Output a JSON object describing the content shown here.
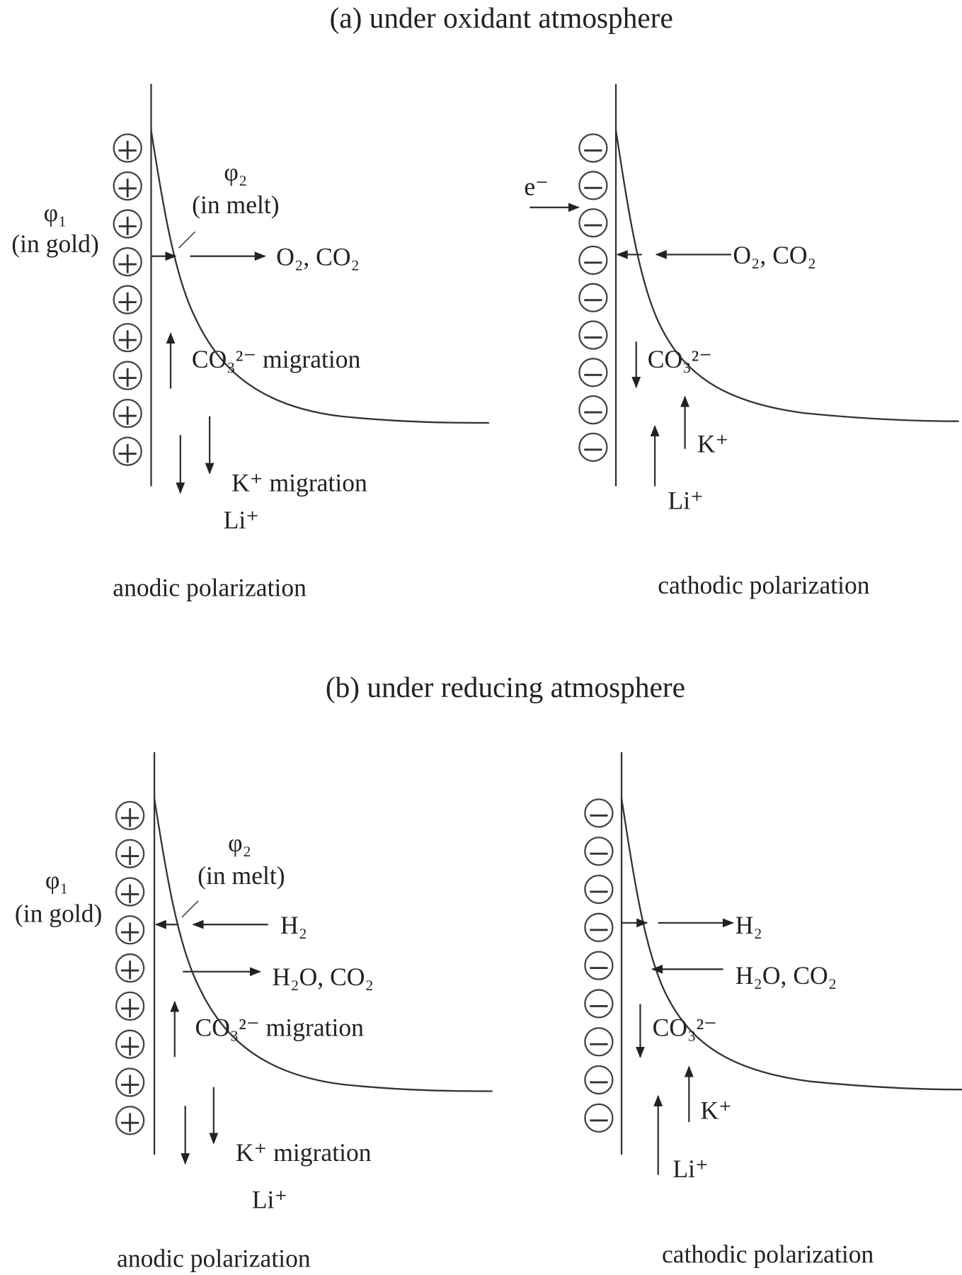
{
  "panel_a": {
    "title": "(a) under oxidant atmosphere",
    "left": {
      "charge_sign": "+",
      "phi1": "φ₁",
      "phi1_note": "(in gold)",
      "phi2": "φ₂",
      "phi2_note": "(in melt)",
      "gas": "O₂, CO₂",
      "anion": "CO₃²⁻ migration",
      "k": "K⁺ migration",
      "li": "Li⁺",
      "caption": "anodic polarization"
    },
    "right": {
      "charge_sign": "−",
      "electron": "e⁻",
      "gas": "O₂, CO₂",
      "anion": "CO₃²⁻",
      "k": "K⁺",
      "li": "Li⁺",
      "caption": "cathodic polarization"
    }
  },
  "panel_b": {
    "title": "(b) under reducing atmosphere",
    "left": {
      "charge_sign": "+",
      "phi1": "φ₁",
      "phi1_note": "(in gold)",
      "phi2": "φ₂",
      "phi2_note": "(in melt)",
      "gas_in": "H₂",
      "gas_out": "H₂O, CO₂",
      "anion": "CO₃²⁻ migration",
      "k": "K⁺ migration",
      "li": "Li⁺",
      "caption": "anodic polarization"
    },
    "right": {
      "charge_sign": "−",
      "gas_out": "H₂",
      "gas_in": "H₂O, CO₂",
      "anion": "CO₃²⁻",
      "k": "K⁺",
      "li": "Li⁺",
      "caption": "cathodic polarization"
    }
  }
}
